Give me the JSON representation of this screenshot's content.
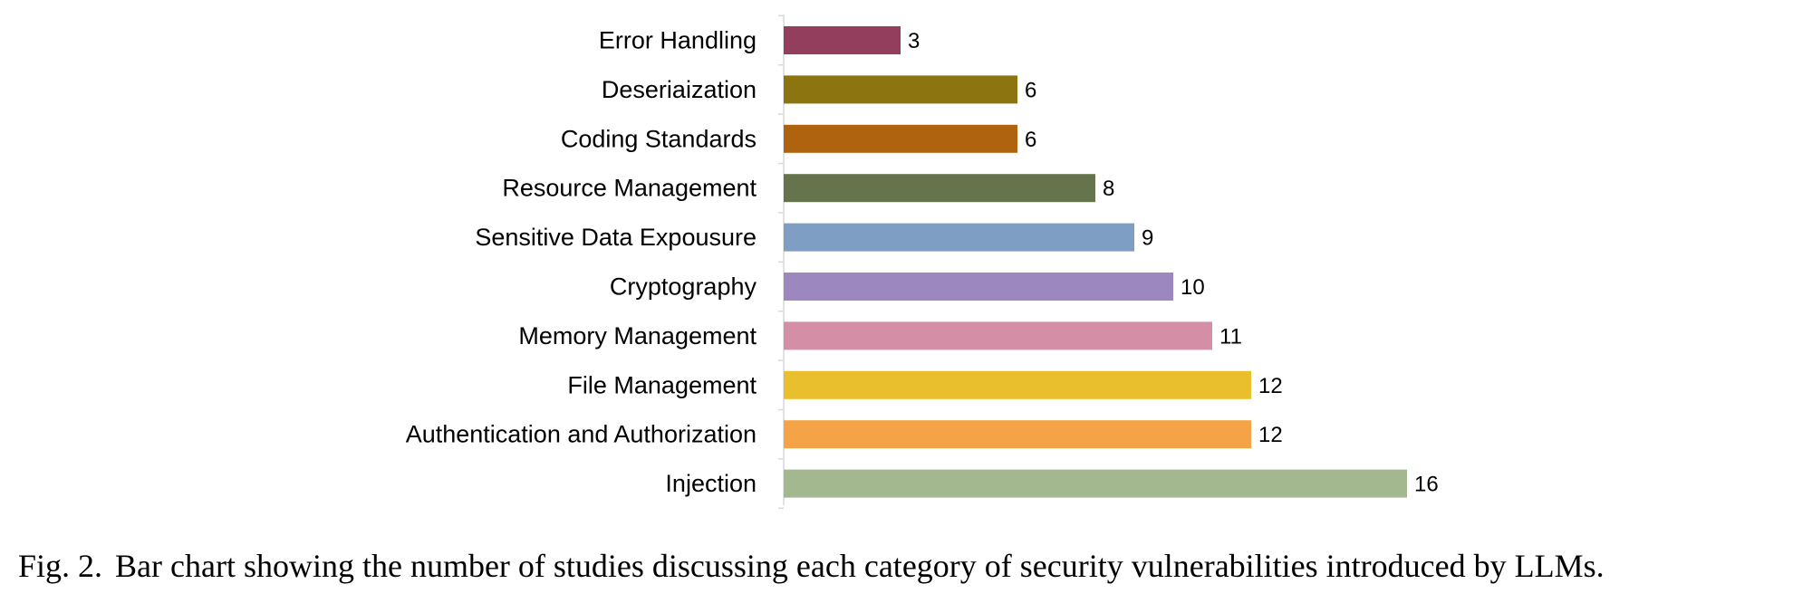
{
  "chart_data": {
    "type": "bar",
    "orientation": "horizontal",
    "categories": [
      "Error Handling",
      "Deseriaization",
      "Coding Standards",
      "Resource Management",
      "Sensitive Data Expousure",
      "Cryptography",
      "Memory Management",
      "File Management",
      "Authentication and Authorization",
      "Injection"
    ],
    "values": [
      3,
      6,
      6,
      8,
      9,
      10,
      11,
      12,
      12,
      16
    ],
    "colors": [
      "#943e5e",
      "#8c7511",
      "#b0630f",
      "#65744c",
      "#7f9ec4",
      "#9c87bf",
      "#d48fa6",
      "#e9bf2d",
      "#f4a347",
      "#a4b890"
    ],
    "data_labels": [
      "3",
      "6",
      "6",
      "8",
      "9",
      "10",
      "11",
      "12",
      "12",
      "16"
    ],
    "xlim": [
      0,
      16
    ],
    "grid": false,
    "legend": "none"
  },
  "caption": {
    "figure_number": "Fig. 2.",
    "text": "Bar chart showing the number of studies discussing each category of security vulnerabilities introduced by LLMs."
  }
}
